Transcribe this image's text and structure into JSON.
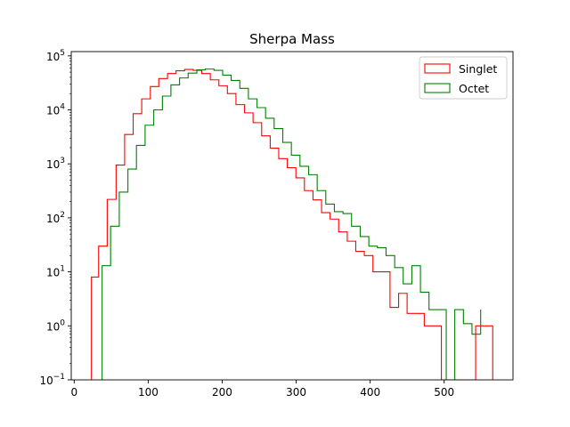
{
  "chart_data": {
    "type": "histogram-step",
    "title": "Sherpa Mass",
    "xlabel": "",
    "ylabel": "",
    "xlim": [
      -4,
      593
    ],
    "ylim": [
      0.1,
      120000
    ],
    "yscale": "log",
    "grid": false,
    "legend_position": "top-right",
    "xticks": [
      0,
      100,
      200,
      300,
      400,
      500
    ],
    "xtick_labels": [
      "0",
      "100",
      "200",
      "300",
      "400",
      "500"
    ],
    "yticks": [
      0.1,
      1,
      10,
      100,
      1000,
      10000,
      100000
    ],
    "ytick_labels": [
      {
        "base": "10",
        "exp": "−1"
      },
      {
        "base": "10",
        "exp": "0"
      },
      {
        "base": "10",
        "exp": "1"
      },
      {
        "base": "10",
        "exp": "2"
      },
      {
        "base": "10",
        "exp": "3"
      },
      {
        "base": "10",
        "exp": "4"
      },
      {
        "base": "10",
        "exp": "5"
      }
    ],
    "series": [
      {
        "name": "Singlet",
        "color": "#ff0000",
        "edges": [
          23.3,
          33.0,
          44.6,
          56.6,
          68.1,
          79.7,
          91.2,
          102.9,
          114.3,
          126.1,
          137.6,
          149.2,
          160.8,
          172.3,
          183.9,
          195.5,
          207.0,
          218.6,
          230.2,
          241.7,
          253.3,
          264.9,
          276.4,
          288.0,
          299.6,
          311.1,
          322.7,
          334.3,
          345.8,
          357.4,
          369.0,
          380.5,
          392.1,
          403.7,
          415.2,
          426.8,
          438.4,
          449.9,
          461.5,
          473.1,
          484.6,
          496.2,
          507.8,
          519.3,
          530.9,
          542.5,
          554.0,
          565.6
        ],
        "values": [
          8,
          30,
          220,
          950,
          3500,
          8500,
          16000,
          27000,
          38000,
          47000,
          53000,
          56000,
          54000,
          47000,
          36000,
          28000,
          20000,
          12500,
          8800,
          5800,
          3300,
          1950,
          1250,
          850,
          550,
          320,
          215,
          125,
          95,
          55,
          37,
          24,
          20,
          10,
          10,
          2.2,
          4,
          1.7,
          1.7,
          1,
          1,
          0.1,
          0.1,
          0.1,
          0.1,
          1,
          1
        ]
      },
      {
        "name": "Octet",
        "color": "#008000",
        "edges": [
          37.7,
          49.2,
          60.9,
          72.6,
          84.1,
          95.8,
          107.5,
          119.2,
          130.7,
          142.4,
          154.0,
          165.7,
          177.2,
          188.9,
          200.6,
          212.1,
          223.8,
          235.4,
          247.1,
          258.6,
          270.2,
          281.9,
          293.5,
          305.1,
          316.8,
          328.4,
          340.0,
          351.6,
          363.3,
          374.8,
          386.5,
          398.2,
          409.7,
          421.4,
          433.1,
          444.6,
          456.3,
          467.9,
          479.5,
          491.1,
          502.8,
          514.3,
          526.0,
          537.6,
          549.3
        ],
        "values": [
          13,
          70,
          300,
          800,
          2200,
          5200,
          10000,
          18000,
          29000,
          39000,
          48000,
          55000,
          57000,
          54000,
          44000,
          35000,
          25000,
          16000,
          11000,
          7000,
          4500,
          2500,
          1450,
          900,
          630,
          320,
          180,
          130,
          120,
          70,
          45,
          30,
          28,
          20,
          12,
          6,
          13,
          4.2,
          2,
          2,
          0.1,
          2,
          1.1,
          0.7,
          2
        ]
      }
    ]
  }
}
